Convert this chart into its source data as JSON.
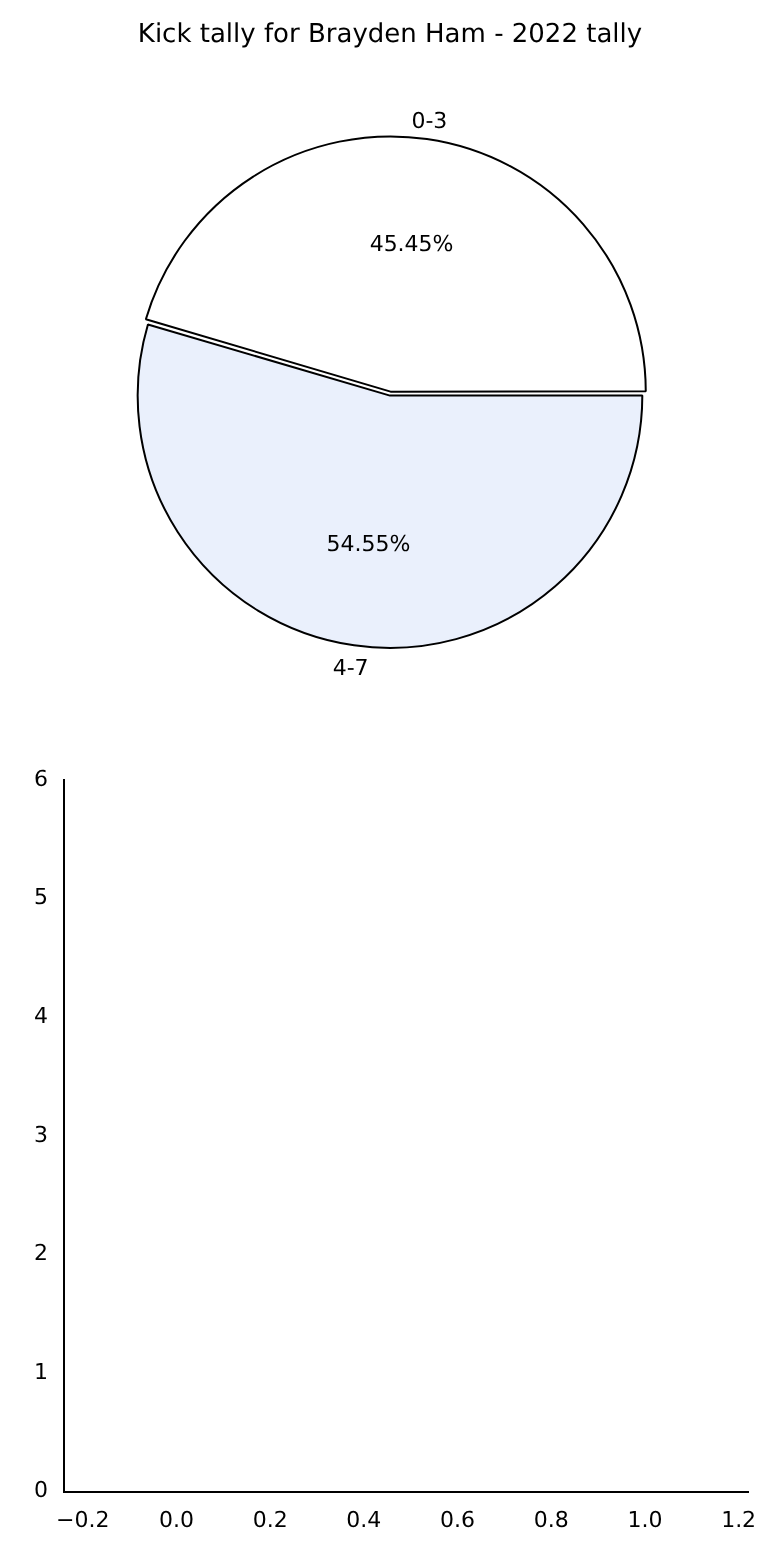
{
  "chart_data": [
    {
      "type": "pie",
      "title": "Kick tally for Brayden Ham - 2022 tally",
      "categories": [
        "0-3",
        "4-7"
      ],
      "values": [
        45.45,
        54.55
      ],
      "colors": [
        "#ffffff",
        "#eaf0fc"
      ],
      "value_labels": [
        "45.45%",
        "54.55%"
      ]
    },
    {
      "type": "scatter",
      "xlim": [
        -0.24,
        1.22
      ],
      "xticks": [
        {
          "value": -0.2,
          "label": "−0.2"
        },
        {
          "value": 0,
          "label": "0.0"
        },
        {
          "value": 0.2,
          "label": "0.2"
        },
        {
          "value": 0.4,
          "label": "0.4"
        },
        {
          "value": 0.6,
          "label": "0.6"
        },
        {
          "value": 0.8,
          "label": "0.8"
        },
        {
          "value": 1,
          "label": "1.0"
        },
        {
          "value": 1.2,
          "label": "1.2"
        }
      ],
      "ylim": [
        0,
        6
      ],
      "yticks": [
        0,
        1,
        2,
        3,
        4,
        5,
        6
      ]
    }
  ]
}
